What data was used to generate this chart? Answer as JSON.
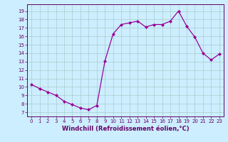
{
  "x": [
    0,
    1,
    2,
    3,
    4,
    5,
    6,
    7,
    8,
    9,
    10,
    11,
    12,
    13,
    14,
    15,
    16,
    17,
    18,
    19,
    20,
    21,
    22,
    23
  ],
  "y": [
    10.3,
    9.8,
    9.4,
    9.0,
    8.3,
    7.9,
    7.5,
    7.3,
    7.8,
    13.1,
    16.3,
    17.4,
    17.6,
    17.8,
    17.1,
    17.4,
    17.4,
    17.8,
    19.0,
    17.2,
    15.9,
    14.0,
    13.2,
    13.9
  ],
  "line_color": "#990099",
  "marker": "D",
  "markersize": 2.0,
  "linewidth": 0.9,
  "xlabel": "Windchill (Refroidissement éolien,°C)",
  "xlabel_fontsize": 6.0,
  "ytick_labels": [
    "7",
    "8",
    "9",
    "10",
    "11",
    "12",
    "13",
    "14",
    "15",
    "16",
    "17",
    "18",
    "19"
  ],
  "ytick_values": [
    7,
    8,
    9,
    10,
    11,
    12,
    13,
    14,
    15,
    16,
    17,
    18,
    19
  ],
  "ylim": [
    6.5,
    19.8
  ],
  "xlim": [
    -0.5,
    23.5
  ],
  "background_color": "#cceeff",
  "grid_color": "#aacccc",
  "tick_color": "#660066",
  "label_color": "#660066",
  "spine_color": "#660066"
}
